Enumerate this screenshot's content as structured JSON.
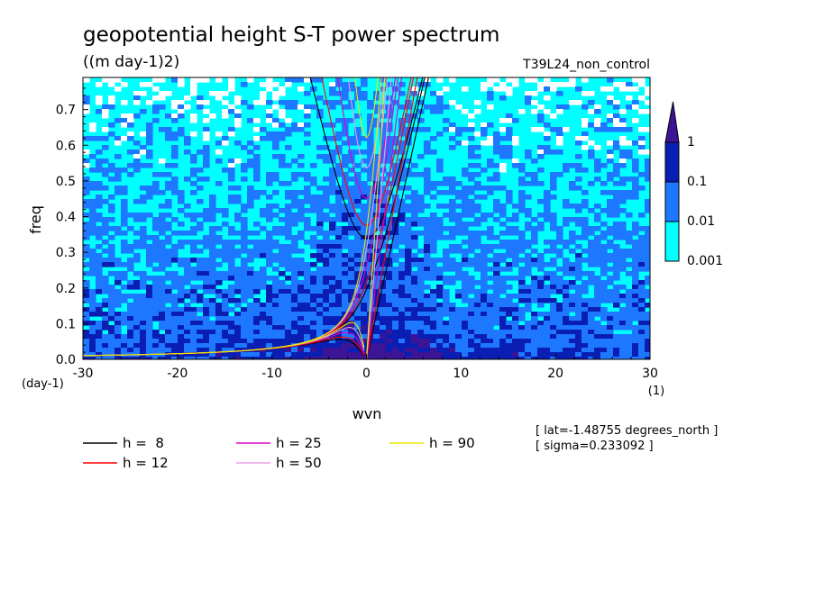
{
  "chart_data": {
    "type": "heatmap",
    "title": "geopotential height S-T power spectrum",
    "subtitle": "((m day-1)2)",
    "run_label": "T39L24_non_control",
    "xlabel": "wvn",
    "ylabel": "freq",
    "x_unit": "(1)",
    "y_unit": "(day-1)",
    "xlim": [
      -30,
      30
    ],
    "ylim": [
      0,
      0.79
    ],
    "x_ticks": [
      -30,
      -20,
      -10,
      0,
      10,
      20,
      30
    ],
    "y_ticks": [
      0.0,
      0.1,
      0.2,
      0.3,
      0.4,
      0.5,
      0.6,
      0.7
    ],
    "x_tick_labels": [
      "-30",
      "-20",
      "-10",
      "0",
      "10",
      "20",
      "30"
    ],
    "y_tick_labels": [
      "0.0",
      "0.1",
      "0.2",
      "0.3",
      "0.4",
      "0.5",
      "0.6",
      "0.7"
    ],
    "colorbar": {
      "levels": [
        0.001,
        0.01,
        0.1,
        1
      ],
      "labels": [
        "0.001",
        "0.01",
        "0.1",
        "1"
      ],
      "colors": [
        "#ffffff",
        "#00ffff",
        "#1e78ff",
        "#0a1eb4",
        "#3c1496"
      ]
    },
    "info": [
      "[ lat=-1.48755 degrees_north ]",
      "[ sigma=0.233092 ]"
    ],
    "dispersion_series": [
      {
        "name": "h =  8",
        "h": 8,
        "color": "#000000"
      },
      {
        "name": "h = 12",
        "h": 12,
        "color": "#ff0000"
      },
      {
        "name": "h = 25",
        "h": 25,
        "color": "#e000c0"
      },
      {
        "name": "h = 50",
        "h": 50,
        "color": "#e8a0e8"
      },
      {
        "name": "h = 90",
        "h": 90,
        "color": "#e8e800"
      }
    ]
  }
}
